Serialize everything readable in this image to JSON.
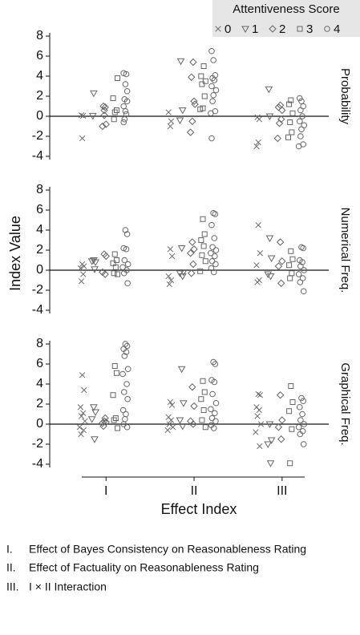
{
  "chart_data": [
    {
      "type": "scatter",
      "facet_label": "Probability",
      "legend_title": "Attentiveness Score",
      "xlim": [
        0.36,
        3.53
      ],
      "ylim": [
        -4.8,
        8.8
      ],
      "yticks": [
        -4,
        -2,
        0,
        2,
        4,
        6,
        8
      ],
      "zero_line": true,
      "series": [
        {
          "name": "0",
          "marker": "x",
          "color": "#666666",
          "x": [
            0.72,
            0.74,
            0.73,
            1.71,
            1.74,
            1.73,
            2.72,
            2.74,
            2.73,
            2.71
          ],
          "values": [
            0.1,
            0.05,
            -2.2,
            0.4,
            -0.5,
            -1.0,
            -0.1,
            -0.3,
            -2.6,
            -3.0
          ]
        },
        {
          "name": "1",
          "marker": "triangle-down",
          "color": "#666666",
          "x": [
            0.86,
            0.85,
            1.85,
            1.87,
            1.84,
            2.85,
            2.86
          ],
          "values": [
            2.3,
            0.05,
            5.5,
            0.6,
            -0.4,
            2.7,
            0.0
          ]
        },
        {
          "name": "2",
          "marker": "diamond",
          "color": "#666666",
          "x": [
            0.97,
            0.99,
            0.98,
            1.0,
            0.96,
            0.98,
            1.99,
            1.97,
            2.0,
            2.01,
            1.98,
            1.96,
            2.98,
            2.96,
            3.0,
            2.99,
            2.97,
            2.95
          ],
          "values": [
            1.0,
            0.9,
            0.6,
            -0.8,
            -1.0,
            0.1,
            5.4,
            3.9,
            1.5,
            1.2,
            -0.5,
            -1.6,
            1.1,
            0.9,
            0.6,
            -0.3,
            -0.7,
            -2.2
          ]
        },
        {
          "name": "3",
          "marker": "square",
          "color": "#666666",
          "x": [
            1.13,
            1.08,
            1.1,
            1.12,
            1.09,
            2.11,
            2.08,
            2.13,
            2.09,
            2.12,
            2.1,
            2.07,
            3.1,
            3.08,
            3.12,
            3.09,
            3.11,
            3.07
          ],
          "values": [
            3.8,
            1.8,
            0.4,
            0.6,
            -0.3,
            5.0,
            4.0,
            3.5,
            3.2,
            2.0,
            0.8,
            0.7,
            1.6,
            1.2,
            0.3,
            -0.6,
            -1.6,
            -2.1
          ]
        },
        {
          "name": "4",
          "marker": "circle",
          "color": "#666666",
          "x": [
            1.2,
            1.23,
            1.22,
            1.21,
            1.24,
            1.2,
            1.22,
            1.23,
            1.21,
            1.2,
            1.24,
            2.2,
            2.22,
            2.24,
            2.21,
            2.23,
            2.2,
            2.25,
            2.22,
            2.21,
            2.24,
            2.19,
            2.2,
            3.2,
            3.22,
            3.24,
            3.21,
            3.23,
            3.2,
            3.25,
            3.22,
            3.21,
            3.24,
            3.19
          ],
          "values": [
            4.3,
            4.2,
            3.2,
            1.7,
            1.5,
            1.0,
            0.5,
            0.2,
            -0.3,
            -0.6,
            2.5,
            6.5,
            5.6,
            4.1,
            3.8,
            3.6,
            3.0,
            2.6,
            2.1,
            1.5,
            0.5,
            0.3,
            -2.2,
            1.8,
            1.5,
            1.0,
            0.6,
            0.0,
            -0.5,
            -0.9,
            -1.3,
            -2.0,
            -2.8,
            -3.0
          ]
        }
      ]
    },
    {
      "type": "scatter",
      "facet_label": "Numerical Freq.",
      "y_label": "Index Value",
      "xlim": [
        0.36,
        3.53
      ],
      "ylim": [
        -4.8,
        8.8
      ],
      "yticks": [
        -4,
        -2,
        0,
        2,
        4,
        6,
        8
      ],
      "zero_line": true,
      "series": [
        {
          "name": "0",
          "marker": "x",
          "color": "#666666",
          "x": [
            0.73,
            0.75,
            0.71,
            0.74,
            0.72,
            1.73,
            1.75,
            1.71,
            1.74,
            1.72,
            2.73,
            2.75,
            2.71,
            2.74,
            2.72
          ],
          "values": [
            0.6,
            0.4,
            0.2,
            -0.4,
            -1.1,
            2.1,
            1.4,
            -0.6,
            -1.0,
            -1.4,
            4.5,
            1.7,
            0.5,
            -1.0,
            -1.2
          ]
        },
        {
          "name": "1",
          "marker": "triangle-down",
          "color": "#666666",
          "x": [
            0.86,
            0.88,
            0.84,
            0.87,
            1.86,
            1.88,
            1.84,
            1.87,
            2.86,
            2.88,
            2.84,
            2.87
          ],
          "values": [
            1.0,
            0.8,
            0.9,
            0.1,
            2.2,
            -0.2,
            -0.3,
            -0.6,
            3.2,
            1.2,
            -0.4,
            -0.6
          ]
        },
        {
          "name": "2",
          "marker": "diamond",
          "color": "#666666",
          "x": [
            0.98,
            1.0,
            0.96,
            0.99,
            1.98,
            2.0,
            1.96,
            1.99,
            1.97,
            2.98,
            3.0,
            2.96,
            2.99
          ],
          "values": [
            1.6,
            1.4,
            -0.2,
            -0.4,
            2.8,
            2.1,
            1.7,
            0.6,
            -0.3,
            2.8,
            0.9,
            0.4,
            -1.3
          ]
        },
        {
          "name": "3",
          "marker": "square",
          "color": "#666666",
          "x": [
            1.1,
            1.12,
            1.08,
            1.11,
            1.09,
            1.13,
            2.1,
            2.12,
            2.08,
            2.11,
            2.09,
            2.13,
            2.07,
            3.1,
            3.12,
            3.08,
            3.11,
            3.09
          ],
          "values": [
            1.6,
            1.0,
            0.7,
            0.3,
            -0.3,
            -0.4,
            5.1,
            3.6,
            3.0,
            2.4,
            1.5,
            0.9,
            -0.1,
            1.9,
            1.1,
            0.5,
            -0.3,
            -0.8
          ]
        },
        {
          "name": "4",
          "marker": "circle",
          "color": "#666666",
          "x": [
            1.22,
            1.24,
            1.2,
            1.23,
            1.21,
            1.25,
            1.19,
            1.235,
            1.205,
            1.245,
            2.22,
            2.24,
            2.2,
            2.23,
            2.21,
            2.25,
            2.19,
            2.235,
            2.205,
            2.245,
            2.195,
            2.225,
            3.22,
            3.24,
            3.2,
            3.23,
            3.21,
            3.25,
            3.19,
            3.235,
            3.205,
            3.245
          ],
          "values": [
            4.0,
            3.6,
            2.2,
            2.1,
            1.0,
            0.6,
            0.3,
            0.0,
            -0.3,
            -1.3,
            5.7,
            5.6,
            4.5,
            3.2,
            2.3,
            2.0,
            1.7,
            1.4,
            0.9,
            0.6,
            0.2,
            -0.2,
            2.3,
            2.2,
            1.0,
            0.8,
            0.4,
            0.0,
            -0.4,
            -0.8,
            -1.2,
            -2.1
          ]
        }
      ]
    },
    {
      "type": "scatter",
      "facet_label": "Graphical Freq.",
      "x_label": "Effect Index",
      "xlim": [
        0.36,
        3.53
      ],
      "ylim": [
        -4.8,
        8.8
      ],
      "yticks": [
        -4,
        -2,
        0,
        2,
        4,
        6,
        8
      ],
      "zero_line": true,
      "xticks": [
        {
          "value": 1,
          "label": "I"
        },
        {
          "value": 2,
          "label": "II"
        },
        {
          "value": 3,
          "label": "III"
        }
      ],
      "series": [
        {
          "name": "0",
          "marker": "x",
          "color": "#666666",
          "x": [
            0.73,
            0.75,
            0.71,
            0.74,
            0.72,
            0.76,
            0.7,
            0.745,
            0.715,
            1.73,
            1.75,
            1.71,
            1.74,
            1.72,
            1.76,
            1.7,
            2.73,
            2.75,
            2.71,
            2.74,
            2.72,
            2.76,
            2.7,
            2.745
          ],
          "values": [
            4.9,
            3.4,
            1.7,
            1.1,
            0.8,
            0.3,
            -0.3,
            -0.6,
            -1.0,
            2.2,
            1.9,
            0.7,
            0.4,
            0.0,
            -0.3,
            -0.6,
            3.0,
            2.9,
            1.7,
            1.4,
            0.8,
            0.0,
            -0.8,
            -2.2
          ]
        },
        {
          "name": "1",
          "marker": "triangle-down",
          "color": "#666666",
          "x": [
            0.86,
            0.88,
            0.84,
            0.87,
            1.86,
            1.88,
            1.84,
            1.87,
            2.86,
            2.88,
            2.84,
            2.87
          ],
          "values": [
            1.7,
            1.2,
            0.5,
            -1.5,
            5.5,
            2.1,
            0.4,
            -0.2,
            0.0,
            -1.6,
            -2.0,
            -3.9
          ]
        },
        {
          "name": "2",
          "marker": "diamond",
          "color": "#666666",
          "x": [
            0.98,
            1.0,
            0.96,
            0.99,
            0.97,
            1.98,
            2.0,
            1.96,
            1.99,
            2.98,
            3.0,
            2.96,
            2.99
          ],
          "values": [
            0.3,
            0.2,
            0.1,
            0.6,
            -0.2,
            3.7,
            1.8,
            0.3,
            0.0,
            2.9,
            0.4,
            -0.3,
            -1.5
          ]
        },
        {
          "name": "3",
          "marker": "square",
          "color": "#666666",
          "x": [
            1.1,
            1.12,
            1.08,
            1.11,
            1.09,
            1.13,
            2.1,
            2.12,
            2.08,
            2.11,
            2.09,
            2.13,
            3.1,
            3.12,
            3.08,
            3.11,
            3.09
          ],
          "values": [
            5.8,
            5.1,
            2.9,
            0.6,
            0.4,
            -0.4,
            4.3,
            3.2,
            2.5,
            1.4,
            0.4,
            -0.3,
            3.8,
            2.2,
            1.3,
            -0.5,
            -3.9
          ]
        },
        {
          "name": "4",
          "marker": "circle",
          "color": "#666666",
          "x": [
            1.22,
            1.24,
            1.2,
            1.23,
            1.21,
            1.25,
            1.19,
            1.235,
            1.205,
            1.245,
            1.195,
            1.225,
            1.215,
            1.2,
            1.24,
            2.22,
            2.24,
            2.2,
            2.23,
            2.21,
            2.25,
            2.19,
            2.235,
            2.205,
            2.245,
            2.195,
            2.225,
            3.22,
            3.24,
            3.2,
            3.23,
            3.21,
            3.25,
            3.19,
            3.235,
            3.205,
            3.245
          ],
          "values": [
            8.0,
            7.8,
            7.5,
            7.2,
            6.8,
            5.5,
            5.0,
            4.0,
            3.2,
            2.5,
            1.4,
            1.0,
            0.5,
            0.0,
            -0.3,
            6.2,
            6.0,
            4.4,
            4.2,
            3.0,
            2.1,
            1.5,
            1.1,
            0.6,
            0.3,
            -0.1,
            -0.4,
            2.6,
            2.3,
            1.7,
            1.0,
            0.4,
            0.0,
            -0.3,
            -0.7,
            -1.0,
            -2.0
          ]
        }
      ]
    }
  ],
  "notes": [
    {
      "numeral": "I.",
      "text": "Effect of Bayes Consistency on Reasonableness Rating"
    },
    {
      "numeral": "II.",
      "text": "Effect of Factuality on Reasonableness Rating"
    },
    {
      "numeral": "III.",
      "text": "I × II Interaction"
    }
  ]
}
